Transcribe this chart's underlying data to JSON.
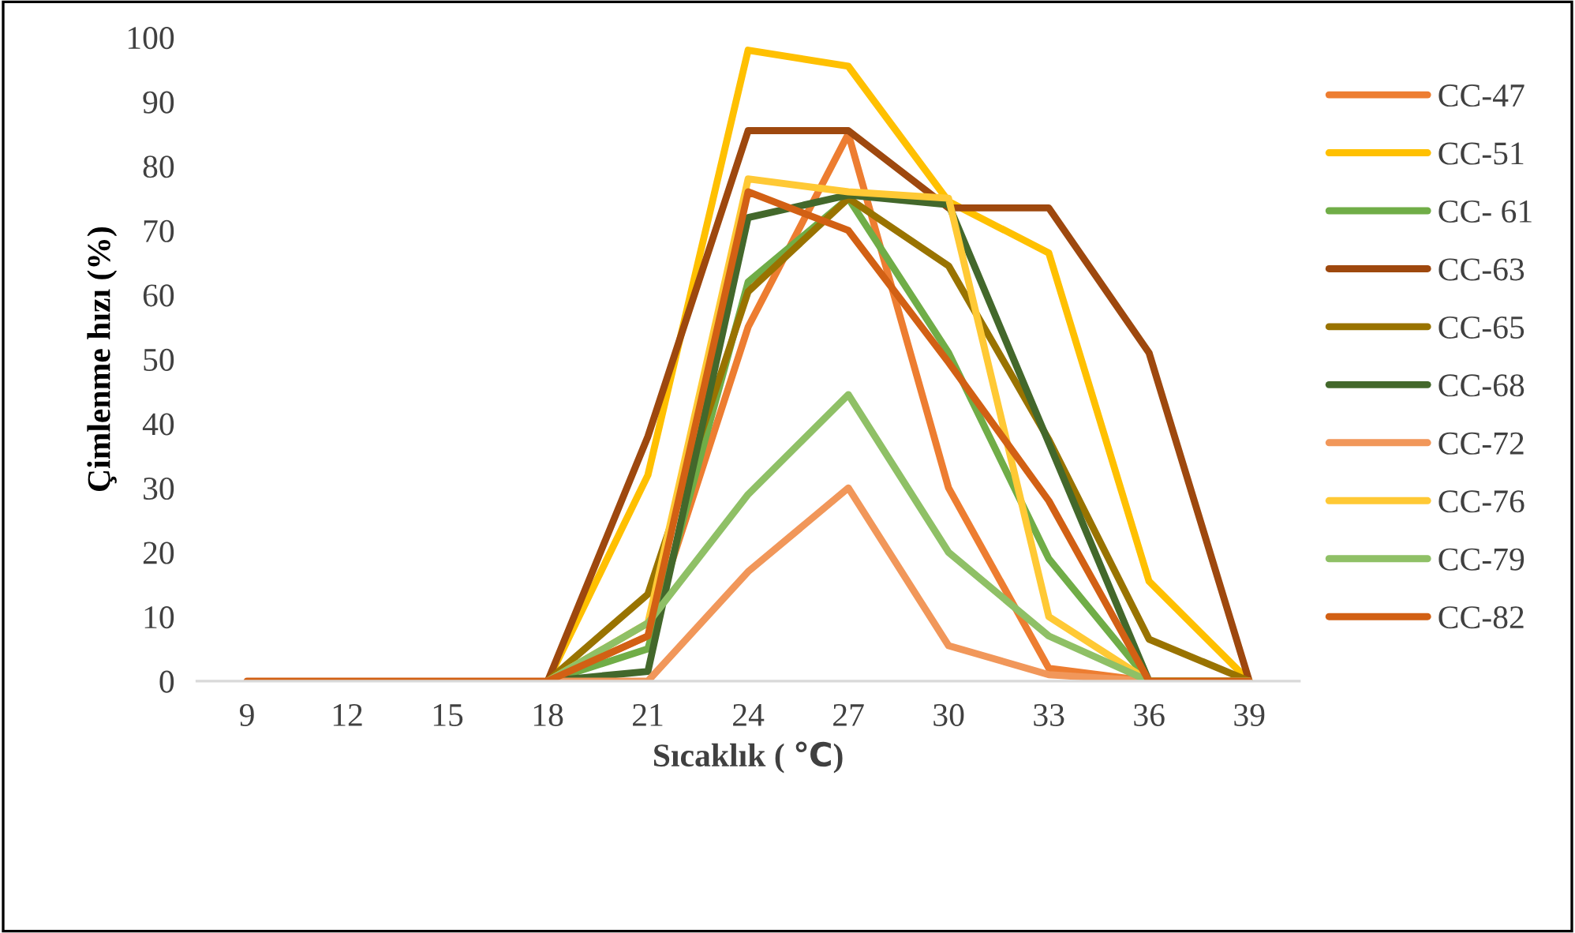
{
  "chart_data": {
    "type": "line",
    "xlabel": "Sıcaklık ( ℃)",
    "ylabel": "Çimlenme hızı (%)",
    "categories": [
      "9",
      "12",
      "15",
      "18",
      "21",
      "24",
      "27",
      "30",
      "33",
      "36",
      "39"
    ],
    "ylim": [
      0,
      100
    ],
    "yticks": [
      0,
      10,
      20,
      30,
      40,
      50,
      60,
      70,
      80,
      90,
      100
    ],
    "grid": false,
    "legend": "right",
    "marker": "none",
    "line_style": "solid",
    "series": [
      {
        "name": "CC-47",
        "color": "#ed7d31",
        "values": [
          null,
          null,
          null,
          0,
          7,
          55,
          85,
          30,
          2,
          0,
          0
        ]
      },
      {
        "name": "CC-51",
        "color": "#ffc000",
        "values": [
          null,
          null,
          null,
          0,
          32,
          98,
          95.5,
          74.5,
          66.5,
          15.5,
          0
        ]
      },
      {
        "name": "CC- 61",
        "color": "#70ad47",
        "values": [
          null,
          null,
          null,
          0,
          5,
          62,
          75,
          51,
          19,
          0,
          0
        ]
      },
      {
        "name": "CC-63",
        "color": "#9e480e",
        "values": [
          null,
          null,
          null,
          0,
          38,
          85.5,
          85.5,
          73.5,
          73.5,
          51,
          0
        ]
      },
      {
        "name": "CC-65",
        "color": "#997300",
        "values": [
          null,
          null,
          null,
          0,
          13.5,
          60.5,
          75,
          64.5,
          37.5,
          6.5,
          0
        ]
      },
      {
        "name": "CC-68",
        "color": "#43682b",
        "values": [
          null,
          null,
          null,
          0,
          1.5,
          72,
          75.5,
          74,
          37,
          0,
          0
        ]
      },
      {
        "name": "CC-72",
        "color": "#f1975a",
        "values": [
          null,
          null,
          null,
          0,
          0,
          17,
          30,
          5.5,
          1,
          0,
          0
        ]
      },
      {
        "name": "CC-76",
        "color": "#ffc935",
        "values": [
          null,
          null,
          null,
          0,
          9,
          78,
          76,
          75,
          10,
          0,
          0
        ]
      },
      {
        "name": "CC-79",
        "color": "#8fc066",
        "values": [
          null,
          null,
          null,
          0,
          9,
          29,
          44.5,
          20,
          7,
          0,
          0
        ]
      },
      {
        "name": "CC-82",
        "color": "#d26014",
        "values": [
          0,
          0,
          0,
          0,
          7,
          76,
          70,
          49.5,
          28,
          0,
          0
        ]
      }
    ]
  }
}
